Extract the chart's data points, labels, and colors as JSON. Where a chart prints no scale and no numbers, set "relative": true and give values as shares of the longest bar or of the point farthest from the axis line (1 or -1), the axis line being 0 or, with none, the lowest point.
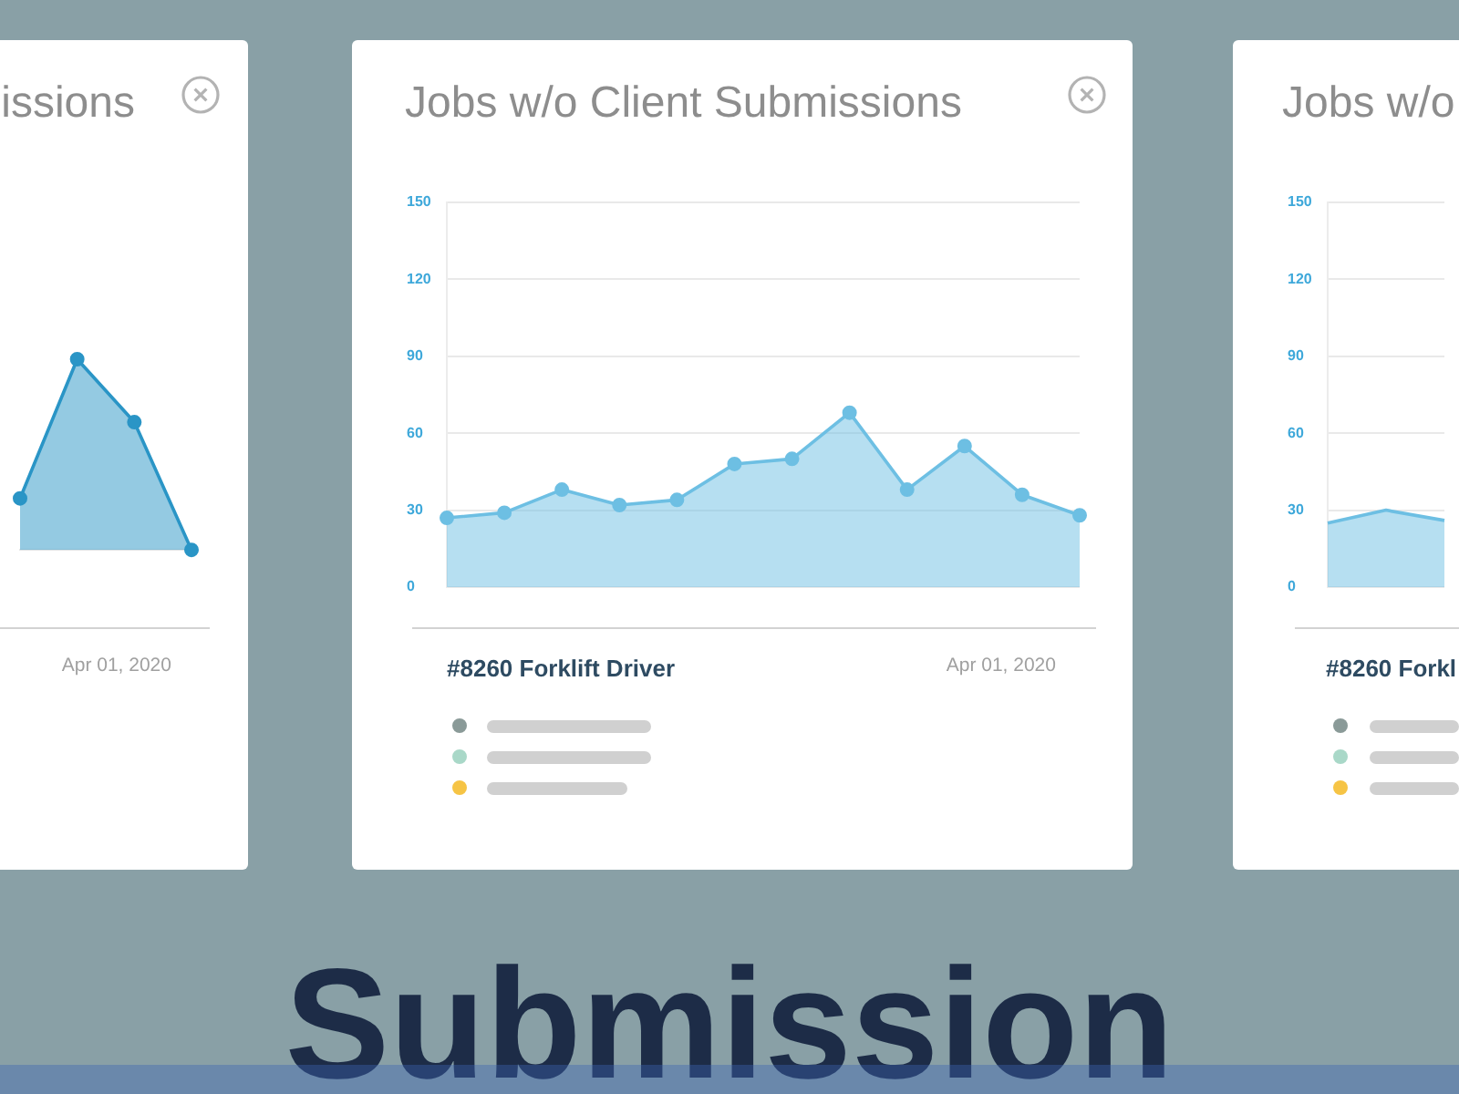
{
  "chart_data": [
    {
      "type": "area",
      "title": "issions",
      "annotations": [
        "Apr 01, 2020"
      ],
      "categories": [
        null,
        null,
        null,
        null
      ],
      "values": [
        0.27,
        1,
        0.67,
        0
      ],
      "relative": true,
      "color": "#2a95c6",
      "marker": "circle"
    },
    {
      "type": "area",
      "title": "Jobs w/o Client Submissions",
      "subtitle": "#8260 Forklift Driver",
      "annotations": [
        "Apr 01, 2020",
        "Submission"
      ],
      "categories": [
        null,
        null,
        null,
        null,
        null,
        null,
        null,
        null,
        null,
        null,
        null,
        null
      ],
      "values": [
        27,
        29,
        38,
        32,
        34,
        48,
        50,
        68,
        38,
        55,
        36,
        28
      ],
      "color": "#6dbfe3",
      "ylim": [
        0,
        150
      ],
      "yticks": [
        0,
        30,
        60,
        90,
        120,
        150
      ],
      "grid": "y",
      "tick_labels": "y",
      "marker": "circle"
    },
    {
      "type": "area",
      "title": "Jobs w/o",
      "subtitle": "#8260 Forkl",
      "categories": [
        null,
        null,
        null
      ],
      "values": [
        25,
        30,
        26
      ],
      "color": "#6dbfe3",
      "ylim": [
        0,
        150
      ],
      "yticks": [
        0,
        30,
        60,
        90,
        120,
        150
      ],
      "grid": "y",
      "tick_labels": "y",
      "marker": "none"
    }
  ]
}
